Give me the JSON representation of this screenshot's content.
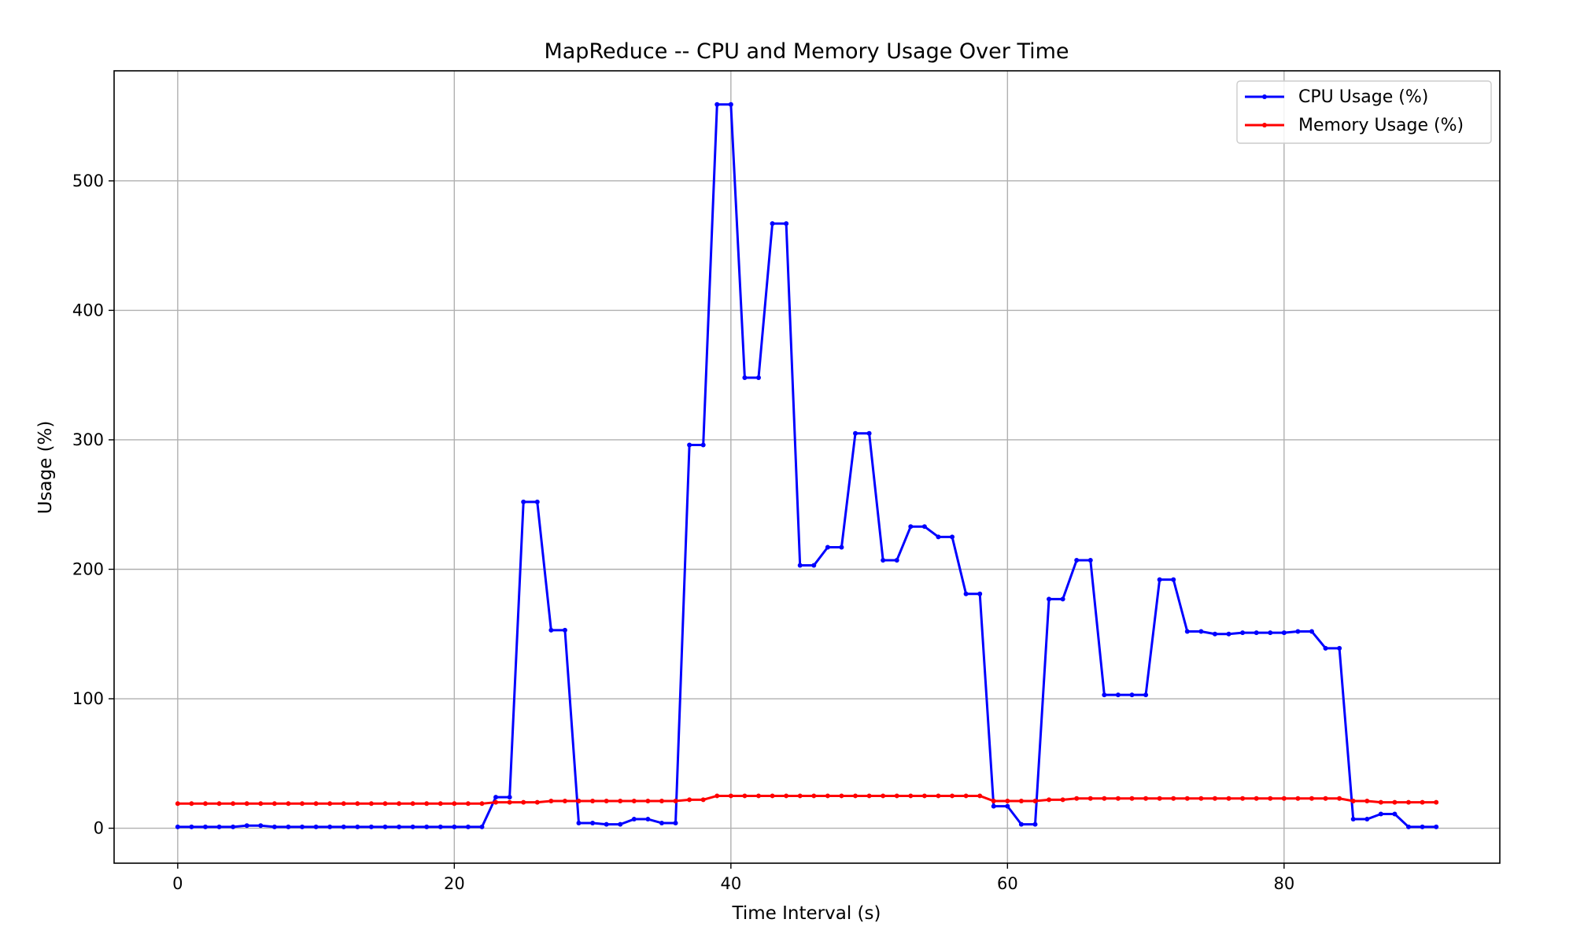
{
  "chart_data": {
    "type": "line",
    "title": "MapReduce -- CPU and Memory Usage Over Time",
    "xlabel": "Time Interval (s)",
    "ylabel": "Usage (%)",
    "xlim": [
      -4.6,
      95.6
    ],
    "ylim": [
      -27,
      585
    ],
    "xticks": [
      0,
      20,
      40,
      60,
      80
    ],
    "yticks": [
      0,
      100,
      200,
      300,
      400,
      500
    ],
    "grid": true,
    "legend": "top-right",
    "x": [
      0,
      1,
      2,
      3,
      4,
      5,
      6,
      7,
      8,
      9,
      10,
      11,
      12,
      13,
      14,
      15,
      16,
      17,
      18,
      19,
      20,
      21,
      22,
      23,
      24,
      25,
      26,
      27,
      28,
      29,
      30,
      31,
      32,
      33,
      34,
      35,
      36,
      37,
      38,
      39,
      40,
      41,
      42,
      43,
      44,
      45,
      46,
      47,
      48,
      49,
      50,
      51,
      52,
      53,
      54,
      55,
      56,
      57,
      58,
      59,
      60,
      61,
      62,
      63,
      64,
      65,
      66,
      67,
      68,
      69,
      70,
      71,
      72,
      73,
      74,
      75,
      76,
      77,
      78,
      79,
      80,
      81,
      82,
      83,
      84,
      85,
      86,
      87,
      88,
      89,
      90,
      91
    ],
    "series": [
      {
        "name": "CPU Usage (%)",
        "color": "#0000ff",
        "marker": "dot",
        "values": [
          1,
          1,
          1,
          1,
          1,
          2,
          2,
          1,
          1,
          1,
          1,
          1,
          1,
          1,
          1,
          1,
          1,
          1,
          1,
          1,
          1,
          1,
          1,
          24,
          24,
          252,
          252,
          153,
          153,
          4,
          4,
          3,
          3,
          7,
          7,
          4,
          4,
          296,
          296,
          559,
          559,
          348,
          348,
          467,
          467,
          203,
          203,
          217,
          217,
          305,
          305,
          207,
          207,
          233,
          233,
          225,
          225,
          181,
          181,
          17,
          17,
          3,
          3,
          177,
          177,
          207,
          207,
          103,
          103,
          103,
          103,
          192,
          192,
          152,
          152,
          150,
          150,
          151,
          151,
          151,
          151,
          152,
          152,
          139,
          139,
          7,
          7,
          11,
          11,
          1,
          1,
          1
        ]
      },
      {
        "name": "Memory Usage (%)",
        "color": "#ff0000",
        "marker": "dot",
        "values": [
          19,
          19,
          19,
          19,
          19,
          19,
          19,
          19,
          19,
          19,
          19,
          19,
          19,
          19,
          19,
          19,
          19,
          19,
          19,
          19,
          19,
          19,
          19,
          20,
          20,
          20,
          20,
          21,
          21,
          21,
          21,
          21,
          21,
          21,
          21,
          21,
          21,
          22,
          22,
          25,
          25,
          25,
          25,
          25,
          25,
          25,
          25,
          25,
          25,
          25,
          25,
          25,
          25,
          25,
          25,
          25,
          25,
          25,
          25,
          21,
          21,
          21,
          21,
          22,
          22,
          23,
          23,
          23,
          23,
          23,
          23,
          23,
          23,
          23,
          23,
          23,
          23,
          23,
          23,
          23,
          23,
          23,
          23,
          23,
          23,
          21,
          21,
          20,
          20,
          20,
          20,
          20
        ]
      }
    ]
  }
}
